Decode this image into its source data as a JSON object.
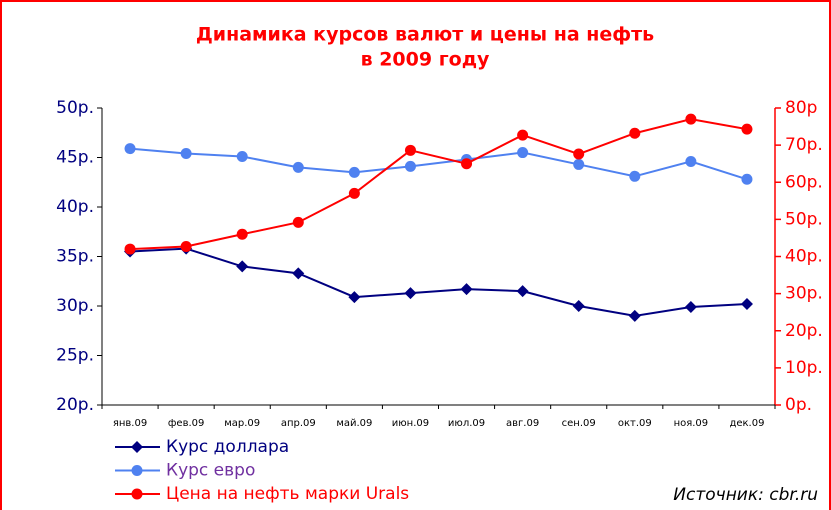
{
  "chart_data": {
    "type": "line",
    "title": [
      "Динамика курсов валют и цены на нефть",
      "в 2009 году"
    ],
    "categories": [
      "янв.09",
      "фев.09",
      "мар.09",
      "апр.09",
      "май.09",
      "июн.09",
      "июл.09",
      "авг.09",
      "сен.09",
      "окт.09",
      "ноя.09",
      "дек.09"
    ],
    "series": [
      {
        "name": "Курс доллара",
        "color": "#000080",
        "marker": "diamond",
        "legend_text_color": "#000080",
        "values": [
          35.5,
          35.8,
          34.0,
          33.3,
          30.9,
          31.3,
          31.7,
          31.5,
          30.0,
          29.0,
          29.9,
          30.2
        ]
      },
      {
        "name": "Курс евро",
        "color": "#4f81f0",
        "marker": "circle",
        "legend_text_color": "#7030a0",
        "values": [
          45.9,
          45.4,
          45.1,
          44.0,
          43.5,
          44.1,
          44.8,
          45.5,
          44.3,
          43.1,
          44.6,
          42.8
        ]
      },
      {
        "name": "Цена на нефть марки Urals",
        "color": "#ff0000",
        "marker": "circle",
        "legend_text_color": "#ff0000",
        "axis": "y2",
        "values": [
          42.0,
          42.7,
          46.0,
          49.2,
          57.0,
          68.6,
          65.0,
          72.7,
          67.6,
          73.2,
          77.0,
          74.3
        ]
      }
    ],
    "ylim": [
      20,
      50
    ],
    "yticks": [
      {
        "value": 20,
        "label": "20р."
      },
      {
        "value": 25,
        "label": "25р."
      },
      {
        "value": 30,
        "label": "30р."
      },
      {
        "value": 35,
        "label": "35р."
      },
      {
        "value": 40,
        "label": "40р."
      },
      {
        "value": 45,
        "label": "45р."
      },
      {
        "value": 50,
        "label": "50р."
      }
    ],
    "y2lim": [
      0,
      80
    ],
    "y2ticks": [
      {
        "value": 0,
        "label": "0р."
      },
      {
        "value": 10,
        "label": "10р."
      },
      {
        "value": 20,
        "label": "20р."
      },
      {
        "value": 30,
        "label": "30р."
      },
      {
        "value": 40,
        "label": "40р."
      },
      {
        "value": 50,
        "label": "50р."
      },
      {
        "value": 60,
        "label": "60р."
      },
      {
        "value": 70,
        "label": "70р."
      },
      {
        "value": 80,
        "label": "80р"
      }
    ],
    "source": "Источник:  cbr.ru"
  }
}
